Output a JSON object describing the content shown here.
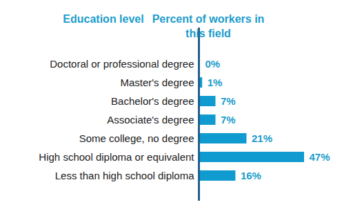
{
  "chart_data": {
    "type": "bar",
    "orientation": "horizontal",
    "ylabel": "Education level",
    "xlabel": "Percent of workers in this field",
    "categories": [
      "Doctoral or professional degree",
      "Master's degree",
      "Bachelor's degree",
      "Associate's degree",
      "Some college, no degree",
      "High school diploma or equivalent",
      "Less than high school diploma"
    ],
    "values": [
      0,
      1,
      7,
      7,
      21,
      47,
      16
    ],
    "value_labels": [
      "0%",
      "1%",
      "7%",
      "7%",
      "21%",
      "47%",
      "16%"
    ],
    "data_labels": true,
    "color": "#109bd0",
    "xlim": [
      0,
      47
    ],
    "tick_labels": "y",
    "grid": false
  }
}
